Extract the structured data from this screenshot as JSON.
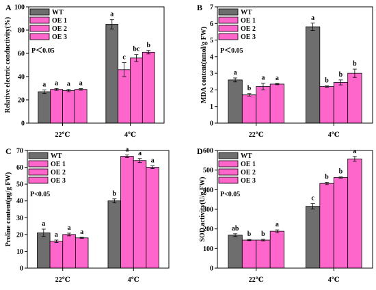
{
  "colors": {
    "WT": "#6e6e6e",
    "OE": "#ff66cc"
  },
  "chart_data": [
    {
      "panel": "A",
      "type": "bar",
      "ylabel": "Relative electric conductivity(%)",
      "ylim": [
        0,
        100
      ],
      "yticks": [
        0,
        20,
        40,
        60,
        80,
        100
      ],
      "categories": [
        "22℃",
        "4℃"
      ],
      "legend": "top-left",
      "note": "P＜0.05",
      "series": [
        {
          "name": "WT",
          "values": [
            27,
            85
          ],
          "errors": [
            1.5,
            4
          ],
          "letters": [
            "a",
            "a"
          ]
        },
        {
          "name": "OE 1",
          "values": [
            29,
            46
          ],
          "errors": [
            0.8,
            6
          ],
          "letters": [
            "a",
            "c"
          ]
        },
        {
          "name": "OE 2",
          "values": [
            28,
            56
          ],
          "errors": [
            1.0,
            3
          ],
          "letters": [
            "a",
            "bc"
          ]
        },
        {
          "name": "OE 3",
          "values": [
            29,
            61
          ],
          "errors": [
            0.7,
            1.5
          ],
          "letters": [
            "a",
            "b"
          ]
        }
      ]
    },
    {
      "panel": "B",
      "type": "bar",
      "ylabel": "MDA content(nmol/g FW)",
      "ylim": [
        0,
        7
      ],
      "yticks": [
        0,
        1,
        2,
        3,
        4,
        5,
        6,
        7
      ],
      "categories": [
        "22℃",
        "4℃"
      ],
      "legend": "top-left",
      "note": "P＜0.05",
      "series": [
        {
          "name": "WT",
          "values": [
            2.6,
            5.8
          ],
          "errors": [
            0.12,
            0.22
          ],
          "letters": [
            "a",
            "a"
          ]
        },
        {
          "name": "OE 1",
          "values": [
            1.7,
            2.2
          ],
          "errors": [
            0.08,
            0.04
          ],
          "letters": [
            "b",
            "b"
          ]
        },
        {
          "name": "OE 2",
          "values": [
            2.2,
            2.45
          ],
          "errors": [
            0.2,
            0.15
          ],
          "letters": [
            "a",
            "b"
          ]
        },
        {
          "name": "OE 3",
          "values": [
            2.35,
            3.0
          ],
          "errors": [
            0.04,
            0.25
          ],
          "letters": [
            "a",
            "b"
          ]
        }
      ]
    },
    {
      "panel": "C",
      "type": "bar",
      "ylabel": "Proline content(μg/g FW)",
      "ylim": [
        0,
        70
      ],
      "yticks": [
        0,
        10,
        20,
        30,
        40,
        50,
        60,
        70
      ],
      "categories": [
        "22℃",
        "4℃"
      ],
      "legend": "top-left",
      "note": "P<0.05",
      "series": [
        {
          "name": "WT",
          "values": [
            21,
            40
          ],
          "errors": [
            2.2,
            1.2
          ],
          "letters": [
            "a",
            "b"
          ]
        },
        {
          "name": "OE 1",
          "values": [
            16,
            66.5
          ],
          "errors": [
            0.7,
            0.8
          ],
          "letters": [
            "a",
            "a"
          ]
        },
        {
          "name": "OE 2",
          "values": [
            20,
            64
          ],
          "errors": [
            0.8,
            1.2
          ],
          "letters": [
            "a",
            "a"
          ]
        },
        {
          "name": "OE 3",
          "values": [
            18,
            60
          ],
          "errors": [
            0.3,
            0.8
          ],
          "letters": [
            "a",
            "a"
          ]
        }
      ]
    },
    {
      "panel": "D",
      "type": "bar",
      "ylabel": "SOD activity(U/g FW)",
      "ylim": [
        0,
        600
      ],
      "yticks": [
        0,
        100,
        200,
        300,
        400,
        500,
        600
      ],
      "categories": [
        "22℃",
        "4℃"
      ],
      "legend": "top-left",
      "note": "P<0.05",
      "series": [
        {
          "name": "WT",
          "values": [
            168,
            315
          ],
          "errors": [
            7,
            14
          ],
          "letters": [
            "ab",
            "c"
          ]
        },
        {
          "name": "OE 1",
          "values": [
            143,
            432
          ],
          "errors": [
            3,
            6
          ],
          "letters": [
            "b",
            "b"
          ]
        },
        {
          "name": "OE 2",
          "values": [
            143,
            462
          ],
          "errors": [
            4,
            3
          ],
          "letters": [
            "b",
            "b"
          ]
        },
        {
          "name": "OE 3",
          "values": [
            188,
            557
          ],
          "errors": [
            7,
            12
          ],
          "letters": [
            "a",
            "a"
          ]
        }
      ]
    }
  ]
}
